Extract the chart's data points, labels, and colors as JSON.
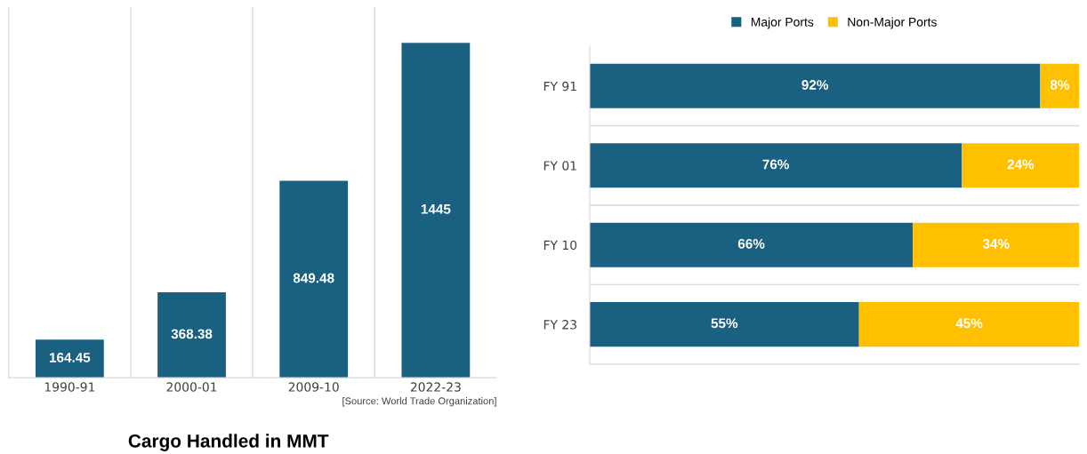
{
  "chart_data": [
    {
      "type": "bar",
      "title": "Cargo Handled in MMT",
      "categories": [
        "1990-91",
        "2000-01",
        "2009-10",
        "2022-23"
      ],
      "values": [
        164.45,
        368.38,
        849.48,
        1445
      ],
      "color": "#1a6080",
      "data_labels": true,
      "grid": "x",
      "tick_labels": "x",
      "annotations": [
        "[Source: World Trade Organization]"
      ]
    },
    {
      "type": "bar",
      "orientation": "horizontal",
      "stacked": true,
      "categories": [
        "FY 91",
        "FY 01",
        "FY 10",
        "FY 23"
      ],
      "tick_labels": "y",
      "grid": "y",
      "legend": "top",
      "series": [
        {
          "name": "Major Ports",
          "color": "#1a6080",
          "values": [
            92,
            76,
            66,
            55
          ],
          "value_labels": [
            "92%",
            "76%",
            "66%",
            "55%"
          ]
        },
        {
          "name": "Non-Major Ports",
          "color": "#ffc000",
          "values": [
            8,
            24,
            34,
            45
          ],
          "value_labels": [
            "8%",
            "24%",
            "34%",
            "45%"
          ]
        }
      ]
    }
  ]
}
